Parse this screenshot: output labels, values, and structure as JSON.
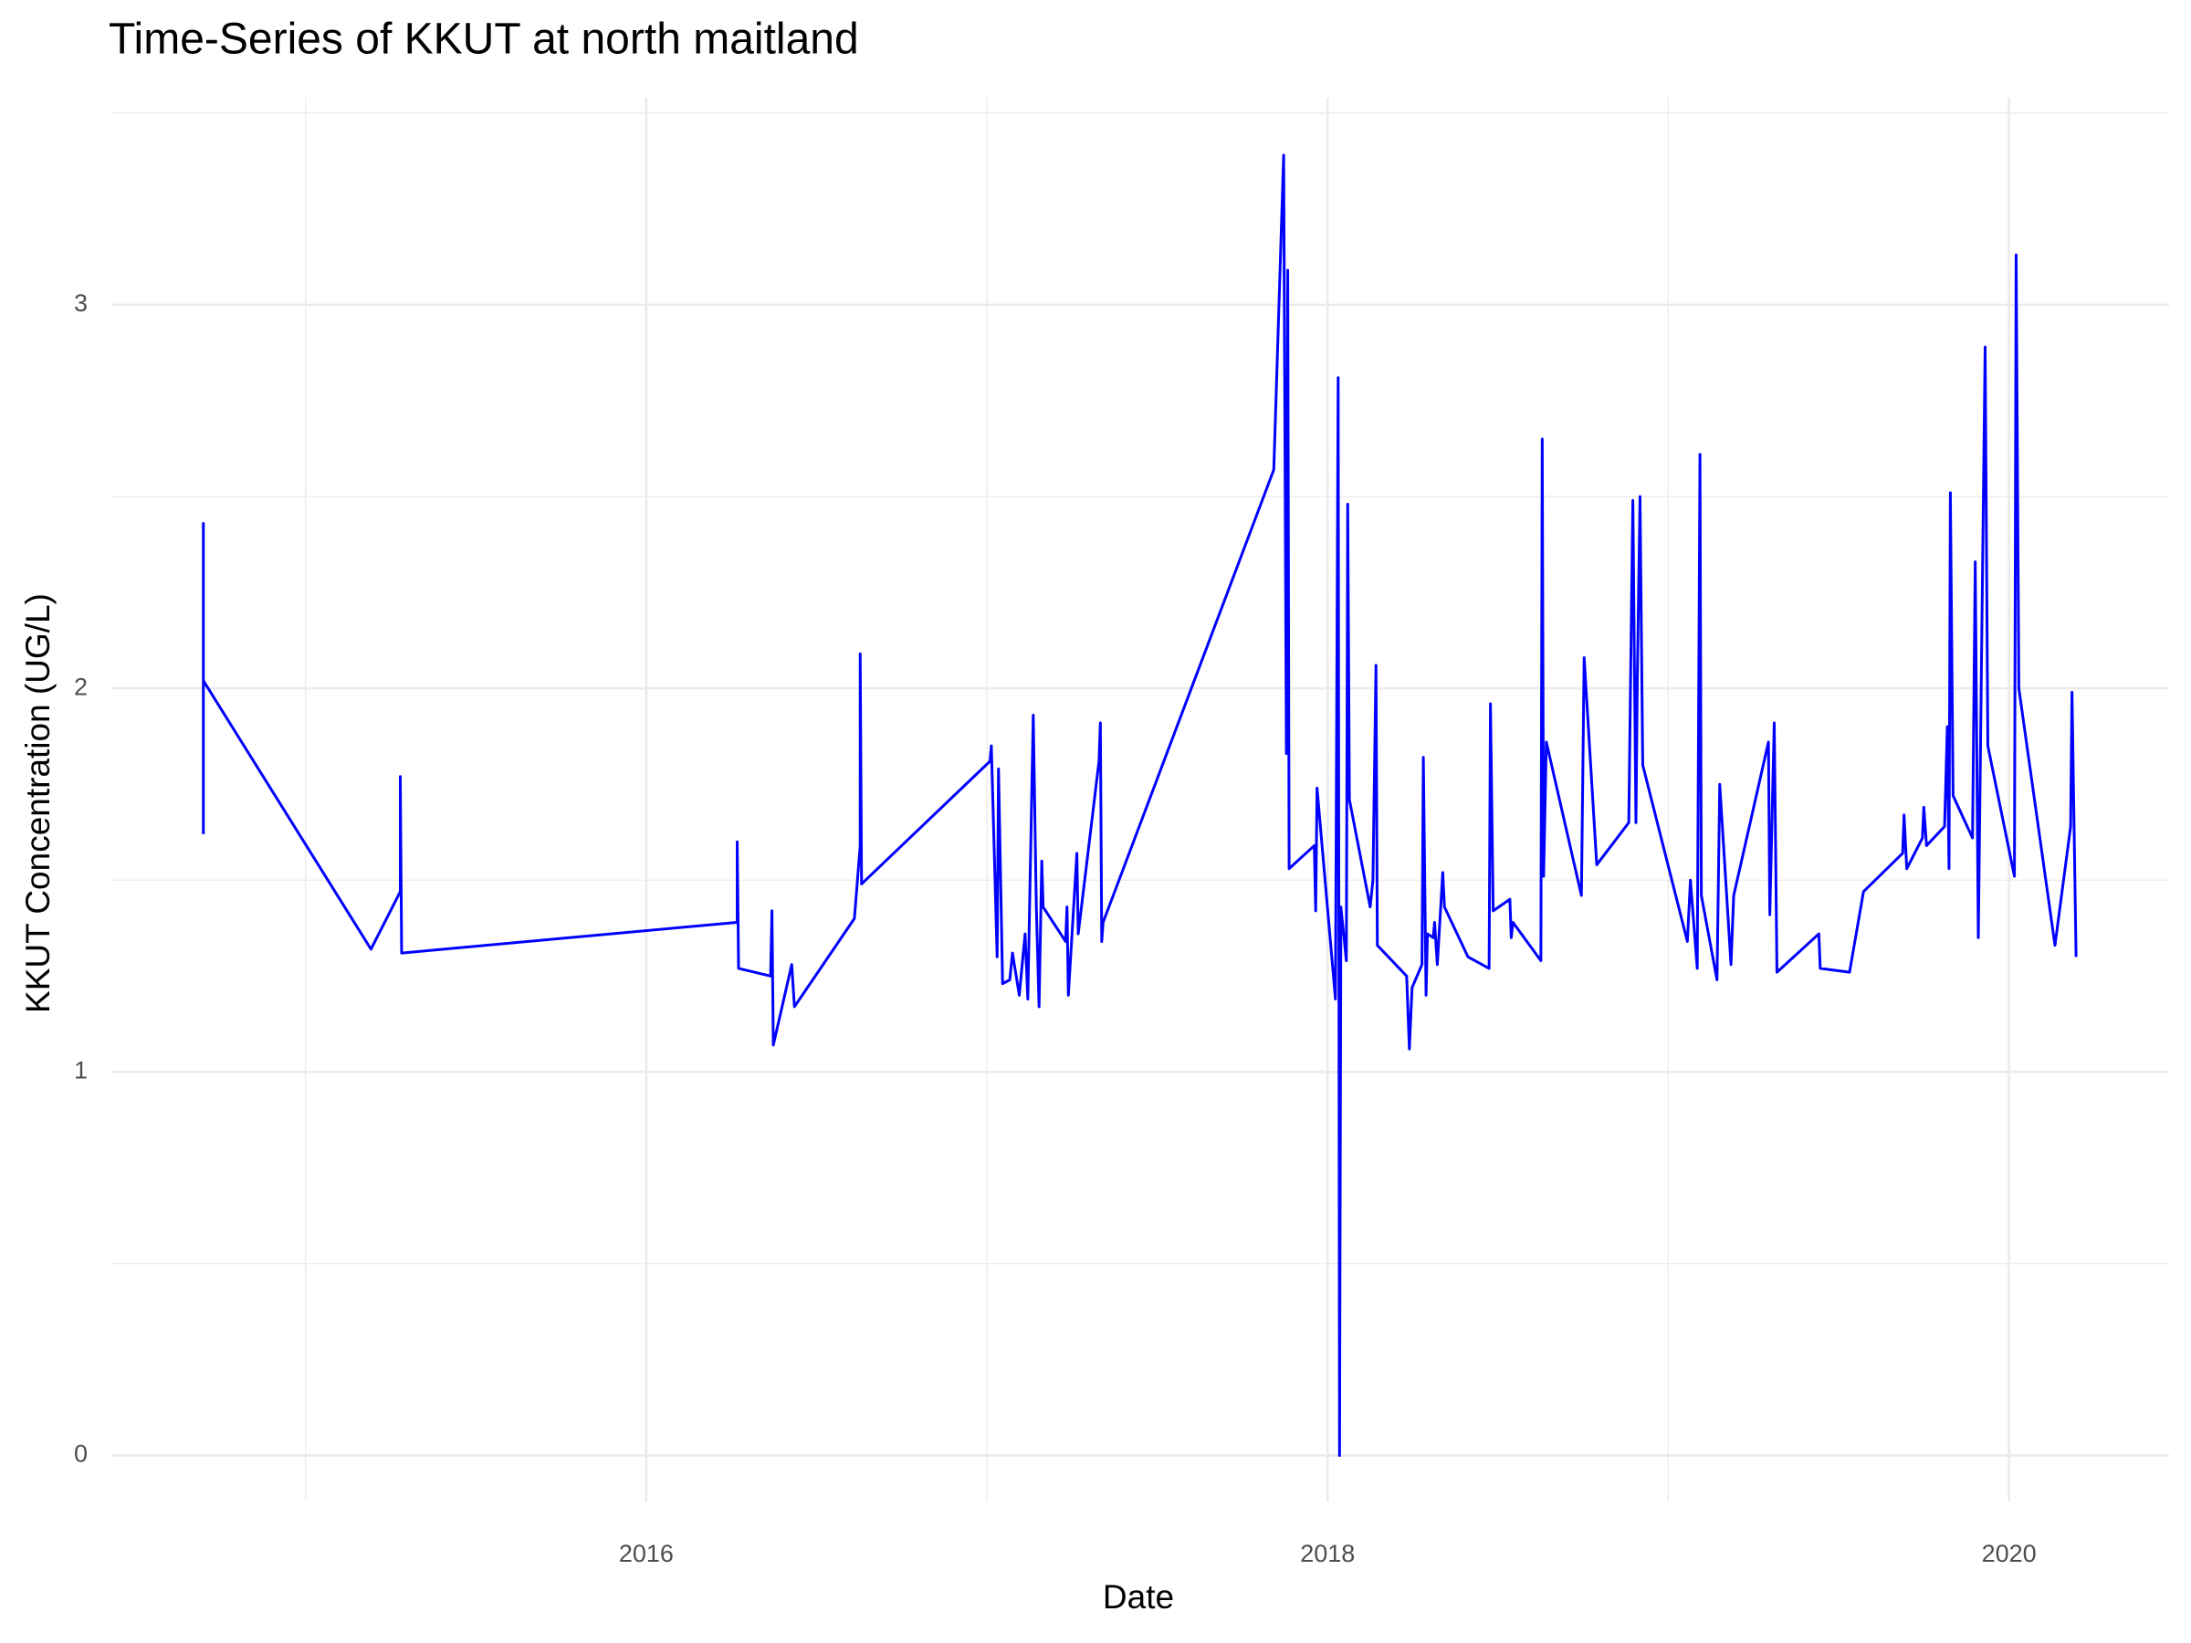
{
  "chart_data": {
    "type": "line",
    "title": "Time-Series of KKUT at north maitland",
    "x_label": "Date",
    "y_label": "KKUT Concentration (UG/L)",
    "x": [
      2014.7,
      2014.7,
      2014.7,
      2015.192,
      2015.278,
      2015.278,
      2015.282,
      2016.267,
      2016.267,
      2016.271,
      2016.365,
      2016.369,
      2016.373,
      2016.427,
      2016.435,
      2016.611,
      2016.628,
      2016.628,
      2016.632,
      2017.009,
      2017.013,
      2017.03,
      2017.034,
      2017.046,
      2017.067,
      2017.075,
      2017.095,
      2017.112,
      2017.12,
      2017.136,
      2017.145,
      2017.153,
      2017.161,
      2017.165,
      2017.231,
      2017.235,
      2017.239,
      2017.264,
      2017.268,
      2017.329,
      2017.333,
      2017.337,
      2017.341,
      2017.842,
      2017.871,
      2017.879,
      2017.883,
      2017.887,
      2017.961,
      2017.965,
      2017.969,
      2018.023,
      2018.031,
      2018.035,
      2018.039,
      2018.055,
      2018.059,
      2018.064,
      2018.125,
      2018.133,
      2018.142,
      2018.146,
      2018.232,
      2018.24,
      2018.248,
      2018.277,
      2018.281,
      2018.289,
      2018.293,
      2018.31,
      2018.314,
      2018.322,
      2018.338,
      2018.343,
      2018.412,
      2018.474,
      2018.478,
      2018.486,
      2018.535,
      2018.539,
      2018.544,
      2018.626,
      2018.63,
      2018.634,
      2018.642,
      2018.745,
      2018.753,
      2018.79,
      2018.884,
      2018.896,
      2018.905,
      2018.909,
      2018.917,
      2018.925,
      2019.056,
      2019.065,
      2019.085,
      2019.093,
      2019.097,
      2019.143,
      2019.151,
      2019.184,
      2019.192,
      2019.294,
      2019.298,
      2019.311,
      2019.319,
      2019.442,
      2019.446,
      2019.532,
      2019.573,
      2019.688,
      2019.692,
      2019.7,
      2019.746,
      2019.75,
      2019.758,
      2019.811,
      2019.819,
      2019.824,
      2019.828,
      2019.836,
      2019.893,
      2019.901,
      2019.91,
      2019.93,
      2019.938,
      2020.016,
      2020.021,
      2020.029,
      2020.135,
      2020.181,
      2020.185,
      2020.197
    ],
    "values": [
      1.62,
      2.43,
      2.02,
      1.32,
      1.47,
      1.77,
      1.31,
      1.39,
      1.6,
      1.27,
      1.25,
      1.42,
      1.07,
      1.28,
      1.17,
      1.4,
      1.59,
      2.09,
      1.49,
      1.81,
      1.85,
      1.3,
      1.79,
      1.23,
      1.24,
      1.31,
      1.2,
      1.36,
      1.19,
      1.93,
      1.43,
      1.17,
      1.55,
      1.43,
      1.34,
      1.43,
      1.2,
      1.57,
      1.36,
      1.81,
      1.91,
      1.34,
      1.39,
      2.57,
      3.39,
      1.83,
      3.09,
      1.53,
      1.59,
      1.42,
      1.74,
      1.19,
      2.81,
      0.0,
      1.43,
      1.29,
      2.48,
      1.71,
      1.43,
      1.5,
      2.06,
      1.33,
      1.25,
      1.06,
      1.22,
      1.28,
      1.82,
      1.2,
      1.36,
      1.35,
      1.39,
      1.28,
      1.52,
      1.43,
      1.3,
      1.27,
      1.96,
      1.42,
      1.45,
      1.35,
      1.39,
      1.29,
      2.65,
      1.51,
      1.86,
      1.46,
      2.08,
      1.54,
      1.65,
      2.49,
      1.65,
      2.02,
      2.5,
      1.8,
      1.34,
      1.5,
      1.27,
      2.61,
      1.46,
      1.24,
      1.75,
      1.28,
      1.46,
      1.86,
      1.41,
      1.91,
      1.26,
      1.36,
      1.27,
      1.26,
      1.47,
      1.57,
      1.67,
      1.53,
      1.61,
      1.69,
      1.59,
      1.64,
      1.9,
      1.53,
      2.51,
      1.72,
      1.61,
      2.33,
      1.35,
      2.89,
      1.85,
      1.51,
      3.13,
      2.0,
      1.33,
      1.64,
      1.99,
      1.3
    ],
    "color": "#0000ff",
    "xlim": [
      2014.43,
      2020.47
    ],
    "xticks": [
      2016,
      2018,
      2020
    ],
    "minor_xticks": [
      2015,
      2017,
      2019
    ],
    "ylim": [
      -0.12,
      3.54
    ],
    "yticks": [
      0,
      1,
      2,
      3
    ],
    "minor_yticks": [
      0.5,
      1.5,
      2.5,
      3.5
    ],
    "grid": true
  }
}
